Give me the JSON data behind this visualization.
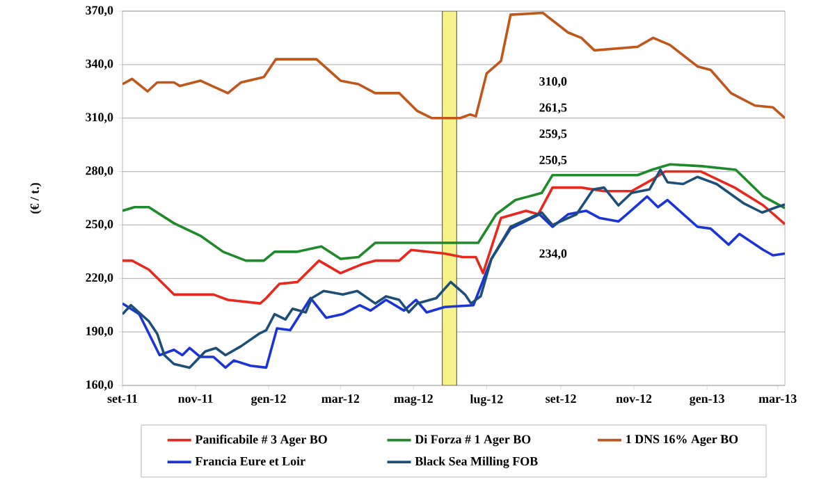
{
  "chart_data": {
    "type": "line",
    "ylabel": "(€ / t.)",
    "xlim": [
      "2011-09-01",
      "2013-03-07"
    ],
    "ylim": [
      160,
      370
    ],
    "xticks": [
      {
        "value": "2011-09",
        "label": "set-11"
      },
      {
        "value": "2011-11",
        "label": "nov-11"
      },
      {
        "value": "2012-01",
        "label": "gen-12"
      },
      {
        "value": "2012-03",
        "label": "mar-12"
      },
      {
        "value": "2012-05",
        "label": "mag-12"
      },
      {
        "value": "2012-07",
        "label": "lug-12"
      },
      {
        "value": "2012-09",
        "label": "set-12"
      },
      {
        "value": "2012-11",
        "label": "nov-12"
      },
      {
        "value": "2013-01",
        "label": "gen-13"
      },
      {
        "value": "2013-03",
        "label": "mar-13"
      }
    ],
    "yticks": [
      {
        "value": 160,
        "label": "160,0"
      },
      {
        "value": 190,
        "label": "190,0"
      },
      {
        "value": 220,
        "label": "220,0"
      },
      {
        "value": 250,
        "label": "250,0"
      },
      {
        "value": 280,
        "label": "280,0"
      },
      {
        "value": 310,
        "label": "310,0"
      },
      {
        "value": 340,
        "label": "340,0"
      },
      {
        "value": 370,
        "label": "370,0"
      }
    ],
    "grid": "y",
    "legend": "bottom",
    "line_style": "solid",
    "marker": "none",
    "bands": [
      {
        "axis": "x",
        "from": "2012-05-25",
        "to": "2012-06-06",
        "color": "#f7f28a"
      }
    ],
    "annotations": [
      "310,0",
      "261,5",
      "259,5",
      "250,5",
      "234,0"
    ],
    "series": [
      {
        "name": "Panificabile # 3 Ager BO",
        "color": "#e8281c",
        "x": [
          "2011-09-01",
          "2011-09-09",
          "2011-09-23",
          "2011-10-14",
          "2011-11-16",
          "2011-11-28",
          "2011-12-25",
          "2011-12-30",
          "2012-01-10",
          "2012-01-25",
          "2012-02-12",
          "2012-03-01",
          "2012-03-19",
          "2012-03-30",
          "2012-04-19",
          "2012-04-29",
          "2012-05-27",
          "2012-06-11",
          "2012-06-22",
          "2012-06-28",
          "2012-07-13",
          "2012-08-03",
          "2012-08-13",
          "2012-08-25",
          "2012-09-18",
          "2012-10-07",
          "2012-10-30",
          "2012-11-15",
          "2012-11-27",
          "2012-12-27",
          "2013-01-24",
          "2013-02-17",
          "2013-03-07"
        ],
        "values": [
          230,
          230,
          225,
          211,
          211,
          208,
          206,
          209,
          217,
          218,
          230,
          223,
          228,
          230,
          230,
          236,
          234,
          232,
          232,
          223,
          254,
          258,
          256,
          271,
          271,
          269,
          269,
          275,
          280,
          280,
          271,
          261,
          250.5
        ]
      },
      {
        "name": "Di Forza # 1 Ager BO",
        "color": "#1f8a2a",
        "x": [
          "2011-09-01",
          "2011-09-11",
          "2011-09-23",
          "2011-10-14",
          "2011-11-05",
          "2011-11-24",
          "2011-12-13",
          "2011-12-28",
          "2012-01-06",
          "2012-01-25",
          "2012-02-14",
          "2012-03-01",
          "2012-03-16",
          "2012-03-30",
          "2012-05-04",
          "2012-06-24",
          "2012-07-09",
          "2012-07-25",
          "2012-08-16",
          "2012-08-25",
          "2012-11-04",
          "2012-11-16",
          "2012-12-01",
          "2012-12-28",
          "2013-01-25",
          "2013-02-17",
          "2013-03-07"
        ],
        "values": [
          258,
          260,
          260,
          251,
          244,
          235,
          230,
          230,
          235,
          235,
          238,
          231,
          232,
          240,
          240,
          240,
          256,
          264,
          268,
          278,
          278,
          281,
          284,
          283,
          281,
          266,
          259.5
        ]
      },
      {
        "name": "1 DNS 16% Ager BO",
        "color": "#c0561a",
        "x": [
          "2011-09-01",
          "2011-09-09",
          "2011-09-22",
          "2011-09-30",
          "2011-10-14",
          "2011-10-19",
          "2011-11-05",
          "2011-11-28",
          "2011-12-09",
          "2011-12-28",
          "2012-01-07",
          "2012-02-10",
          "2012-03-01",
          "2012-03-16",
          "2012-03-30",
          "2012-04-19",
          "2012-05-04",
          "2012-05-16",
          "2012-06-09",
          "2012-06-17",
          "2012-06-22",
          "2012-07-01",
          "2012-07-13",
          "2012-07-21",
          "2012-08-17",
          "2012-09-07",
          "2012-09-18",
          "2012-09-29",
          "2012-11-04",
          "2012-11-17",
          "2012-12-01",
          "2012-12-24",
          "2013-01-04",
          "2013-01-21",
          "2013-02-10",
          "2013-02-25",
          "2013-03-07"
        ],
        "values": [
          329,
          332,
          325,
          330,
          330,
          328,
          331,
          324,
          330,
          333,
          343,
          343,
          331,
          329,
          324,
          324,
          314,
          310,
          310,
          312,
          311,
          335,
          342,
          368,
          369,
          358,
          355,
          348,
          350,
          355,
          351,
          339,
          337,
          324,
          317,
          316,
          310
        ]
      },
      {
        "name": "Francia Eure et Loir",
        "color": "#1a34d8",
        "x": [
          "2011-09-01",
          "2011-09-15",
          "2011-10-02",
          "2011-10-14",
          "2011-10-21",
          "2011-10-27",
          "2011-11-05",
          "2011-11-16",
          "2011-11-26",
          "2011-12-03",
          "2011-12-17",
          "2011-12-30",
          "2012-01-08",
          "2012-01-19",
          "2012-02-05",
          "2012-02-18",
          "2012-03-03",
          "2012-03-17",
          "2012-03-26",
          "2012-04-08",
          "2012-04-23",
          "2012-05-03",
          "2012-05-12",
          "2012-05-27",
          "2012-06-20",
          "2012-07-05",
          "2012-07-21",
          "2012-08-14",
          "2012-08-25",
          "2012-09-07",
          "2012-09-22",
          "2012-10-03",
          "2012-10-19",
          "2012-10-26",
          "2012-11-12",
          "2012-11-21",
          "2012-11-29",
          "2012-12-24",
          "2013-01-04",
          "2013-01-19",
          "2013-01-28",
          "2013-02-17",
          "2013-02-25",
          "2013-03-07"
        ],
        "values": [
          206,
          200,
          177,
          180,
          177,
          181,
          176,
          176,
          170,
          174,
          171,
          170,
          192,
          191,
          209,
          198,
          200,
          205,
          202,
          208,
          202,
          208,
          201,
          204,
          205,
          231,
          248,
          256,
          249,
          256,
          258,
          254,
          252,
          256,
          266,
          260,
          264,
          249,
          248,
          239,
          245,
          236,
          233,
          234
        ]
      },
      {
        "name": "Black Sea Milling FOB",
        "color": "#1c4f78",
        "x": [
          "2011-09-01",
          "2011-09-08",
          "2011-09-23",
          "2011-09-30",
          "2011-10-06",
          "2011-10-14",
          "2011-10-27",
          "2011-11-09",
          "2011-11-18",
          "2011-11-26",
          "2011-12-09",
          "2011-12-24",
          "2011-12-30",
          "2012-01-06",
          "2012-01-15",
          "2012-01-21",
          "2012-02-01",
          "2012-02-06",
          "2012-02-16",
          "2012-03-03",
          "2012-03-15",
          "2012-03-30",
          "2012-04-08",
          "2012-04-19",
          "2012-04-27",
          "2012-05-04",
          "2012-05-20",
          "2012-06-01",
          "2012-06-13",
          "2012-06-18",
          "2012-06-26",
          "2012-07-05",
          "2012-07-21",
          "2012-08-16",
          "2012-08-25",
          "2012-09-14",
          "2012-09-28",
          "2012-10-07",
          "2012-10-19",
          "2012-10-30",
          "2012-11-14",
          "2012-11-23",
          "2012-11-29",
          "2012-12-12",
          "2012-12-24",
          "2013-01-09",
          "2013-02-01",
          "2013-02-16",
          "2013-02-28",
          "2013-03-07"
        ],
        "values": [
          200,
          205,
          196,
          189,
          177,
          172,
          170,
          179,
          181,
          177,
          182,
          189,
          191,
          200,
          197,
          203,
          201,
          209,
          213,
          211,
          213,
          206,
          210,
          208,
          201,
          206,
          209,
          218,
          211,
          206,
          210,
          231,
          249,
          257,
          250,
          256,
          270,
          271,
          261,
          268,
          270,
          281,
          274,
          273,
          277,
          273,
          262,
          257,
          260,
          261.5
        ]
      }
    ]
  }
}
